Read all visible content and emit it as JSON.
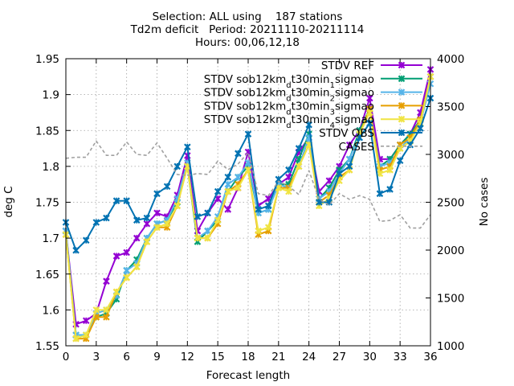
{
  "chart_data": {
    "type": "line",
    "title_lines": [
      "Selection: ALL using    187 stations",
      "Td2m deficit   Period: 20211110-20211114",
      "Hours: 00,06,12,18"
    ],
    "xlabel": "Forecast length",
    "ylabel": "deg C",
    "y2label": "No cases",
    "xlim": [
      0,
      36
    ],
    "ylim": [
      1.55,
      1.95
    ],
    "y2lim": [
      1000,
      4000
    ],
    "xticks": [
      0,
      3,
      6,
      9,
      12,
      15,
      18,
      21,
      24,
      27,
      30,
      33,
      36
    ],
    "yticks": [
      1.55,
      1.6,
      1.65,
      1.7,
      1.75,
      1.8,
      1.85,
      1.9,
      1.95
    ],
    "yticklabels": [
      "1.55",
      "1.6",
      "1.65",
      "1.7",
      "1.75",
      "1.8",
      "1.85",
      "1.9",
      "1.95"
    ],
    "y2ticks": [
      1000,
      1500,
      2000,
      2500,
      3000,
      3500,
      4000
    ],
    "grid": true,
    "legend_position": "top-right",
    "x": [
      0,
      1,
      2,
      3,
      4,
      5,
      6,
      7,
      8,
      9,
      10,
      11,
      12,
      13,
      14,
      15,
      16,
      17,
      18,
      19,
      20,
      21,
      22,
      23,
      24,
      25,
      26,
      27,
      28,
      29,
      30,
      31,
      32,
      33,
      34,
      35,
      36
    ],
    "series": [
      {
        "name_parts": [
          {
            "t": "STDV REF"
          }
        ],
        "color": "#9400d3",
        "axis": "y",
        "values": [
          1.71,
          1.58,
          1.585,
          1.595,
          1.64,
          1.675,
          1.68,
          1.7,
          1.72,
          1.735,
          1.73,
          1.76,
          1.815,
          1.71,
          1.735,
          1.755,
          1.74,
          1.77,
          1.82,
          1.745,
          1.755,
          1.775,
          1.785,
          1.82,
          1.84,
          1.765,
          1.78,
          1.8,
          1.83,
          1.85,
          1.895,
          1.81,
          1.81,
          1.83,
          1.845,
          1.875,
          1.935
        ]
      },
      {
        "name_parts": [
          {
            "t": "STDV sob12km"
          },
          {
            "t": "d",
            "sub": true
          },
          {
            "t": "t30min"
          },
          {
            "t": "1",
            "sub": true
          },
          {
            "t": "sigmao"
          }
        ],
        "color": "#009e73",
        "axis": "y",
        "values": [
          1.71,
          1.565,
          1.565,
          1.59,
          1.595,
          1.615,
          1.655,
          1.67,
          1.7,
          1.72,
          1.725,
          1.75,
          1.8,
          1.695,
          1.71,
          1.725,
          1.765,
          1.785,
          1.8,
          1.735,
          1.74,
          1.775,
          1.775,
          1.81,
          1.845,
          1.755,
          1.77,
          1.795,
          1.81,
          1.85,
          1.88,
          1.8,
          1.81,
          1.83,
          1.845,
          1.865,
          1.925
        ]
      },
      {
        "name_parts": [
          {
            "t": "STDV sob12km"
          },
          {
            "t": "d",
            "sub": true
          },
          {
            "t": "t30min"
          },
          {
            "t": "2",
            "sub": true
          },
          {
            "t": "sigmao"
          }
        ],
        "color": "#56b4e9",
        "axis": "y",
        "values": [
          1.71,
          1.565,
          1.565,
          1.595,
          1.6,
          1.62,
          1.655,
          1.665,
          1.7,
          1.72,
          1.725,
          1.755,
          1.805,
          1.7,
          1.71,
          1.73,
          1.775,
          1.785,
          1.805,
          1.735,
          1.74,
          1.775,
          1.77,
          1.8,
          1.84,
          1.755,
          1.765,
          1.79,
          1.81,
          1.845,
          1.88,
          1.8,
          1.805,
          1.825,
          1.84,
          1.86,
          1.915
        ]
      },
      {
        "name_parts": [
          {
            "t": "STDV sob12km"
          },
          {
            "t": "d",
            "sub": true
          },
          {
            "t": "t30min"
          },
          {
            "t": "3",
            "sub": true
          },
          {
            "t": "sigmao"
          }
        ],
        "color": "#e69f00",
        "axis": "y",
        "values": [
          1.705,
          1.56,
          1.56,
          1.59,
          1.59,
          1.625,
          1.645,
          1.66,
          1.695,
          1.715,
          1.715,
          1.745,
          1.8,
          1.7,
          1.7,
          1.72,
          1.765,
          1.775,
          1.795,
          1.705,
          1.71,
          1.77,
          1.77,
          1.8,
          1.83,
          1.75,
          1.76,
          1.785,
          1.795,
          1.845,
          1.88,
          1.795,
          1.8,
          1.83,
          1.84,
          1.865,
          1.925
        ]
      },
      {
        "name_parts": [
          {
            "t": "STDV sob12km"
          },
          {
            "t": "d",
            "sub": true
          },
          {
            "t": "t30min"
          },
          {
            "t": "4",
            "sub": true
          },
          {
            "t": "sigmao"
          }
        ],
        "color": "#f0e442",
        "axis": "y",
        "values": [
          1.705,
          1.56,
          1.565,
          1.6,
          1.6,
          1.625,
          1.645,
          1.66,
          1.695,
          1.715,
          1.72,
          1.745,
          1.8,
          1.7,
          1.7,
          1.725,
          1.765,
          1.77,
          1.795,
          1.71,
          1.715,
          1.77,
          1.765,
          1.8,
          1.83,
          1.745,
          1.755,
          1.78,
          1.795,
          1.845,
          1.875,
          1.79,
          1.795,
          1.825,
          1.835,
          1.86,
          1.925
        ]
      },
      {
        "name_parts": [
          {
            "t": "STDV OBS"
          }
        ],
        "color": "#0072b2",
        "axis": "y",
        "values": [
          1.722,
          1.683,
          1.697,
          1.722,
          1.728,
          1.752,
          1.752,
          1.725,
          1.728,
          1.762,
          1.772,
          1.8,
          1.827,
          1.73,
          1.735,
          1.765,
          1.785,
          1.818,
          1.845,
          1.74,
          1.745,
          1.782,
          1.795,
          1.825,
          1.858,
          1.75,
          1.75,
          1.79,
          1.8,
          1.84,
          1.86,
          1.762,
          1.768,
          1.808,
          1.83,
          1.853,
          1.895
        ]
      },
      {
        "name_parts": [
          {
            "t": "CASES"
          }
        ],
        "color": "#a0a0a0",
        "axis": "y2",
        "dashed": true,
        "values": [
          2960,
          2970,
          2970,
          3140,
          2990,
          2990,
          3130,
          3000,
          2990,
          3120,
          2960,
          2790,
          2780,
          2800,
          2790,
          2930,
          2840,
          2900,
          3020,
          2590,
          2570,
          2720,
          2670,
          2580,
          2830,
          2530,
          2470,
          2590,
          2530,
          2570,
          2530,
          2300,
          2310,
          2370,
          2230,
          2230,
          2370
        ]
      }
    ]
  }
}
